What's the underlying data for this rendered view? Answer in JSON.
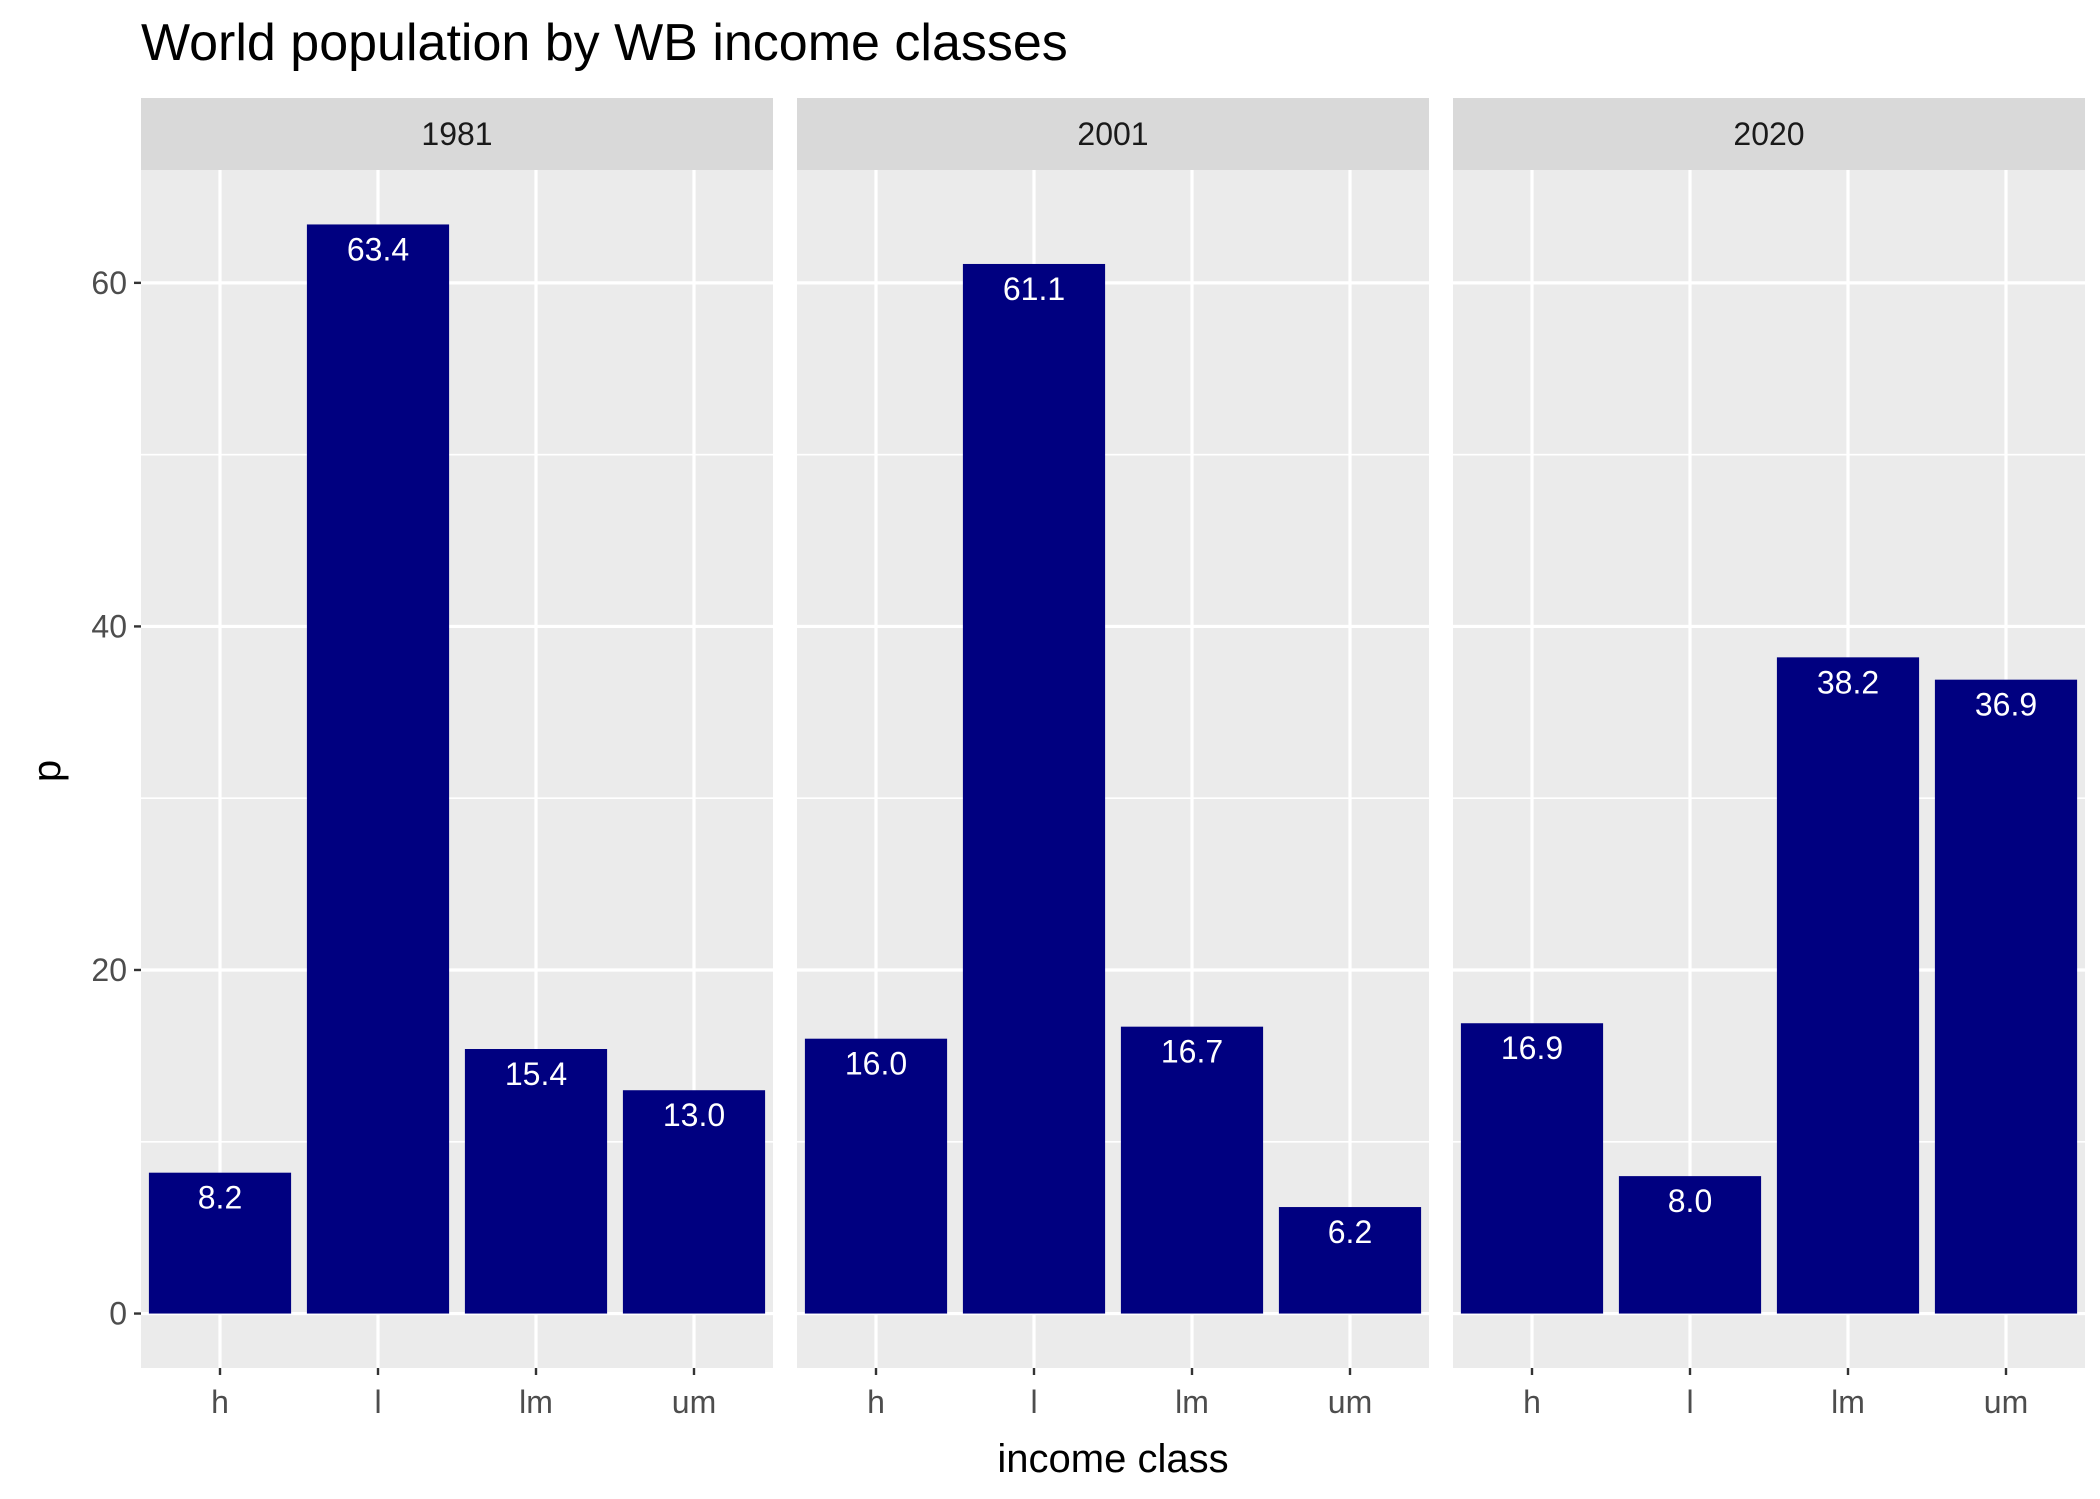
{
  "chart_data": {
    "type": "bar",
    "title": "World population by WB income classes",
    "xlabel": "income class",
    "ylabel": "p",
    "ylim": [
      -3.17,
      66.57
    ],
    "yticks": [
      0,
      20,
      40,
      60
    ],
    "ytick_labels": [
      "0",
      "20",
      "40",
      "60"
    ],
    "grid": true,
    "bar_color": "#000080",
    "categories": [
      "h",
      "l",
      "lm",
      "um"
    ],
    "facets": [
      {
        "label": "1981",
        "values": [
          8.2,
          63.4,
          15.4,
          13.0
        ],
        "value_labels": [
          "8.2",
          "63.4",
          "15.4",
          "13.0"
        ]
      },
      {
        "label": "2001",
        "values": [
          16.0,
          61.1,
          16.7,
          6.2
        ],
        "value_labels": [
          "16.0",
          "61.1",
          "16.7",
          "6.2"
        ]
      },
      {
        "label": "2020",
        "values": [
          16.9,
          8.0,
          38.2,
          36.9
        ],
        "value_labels": [
          "16.9",
          "8.0",
          "38.2",
          "36.9"
        ]
      }
    ]
  }
}
